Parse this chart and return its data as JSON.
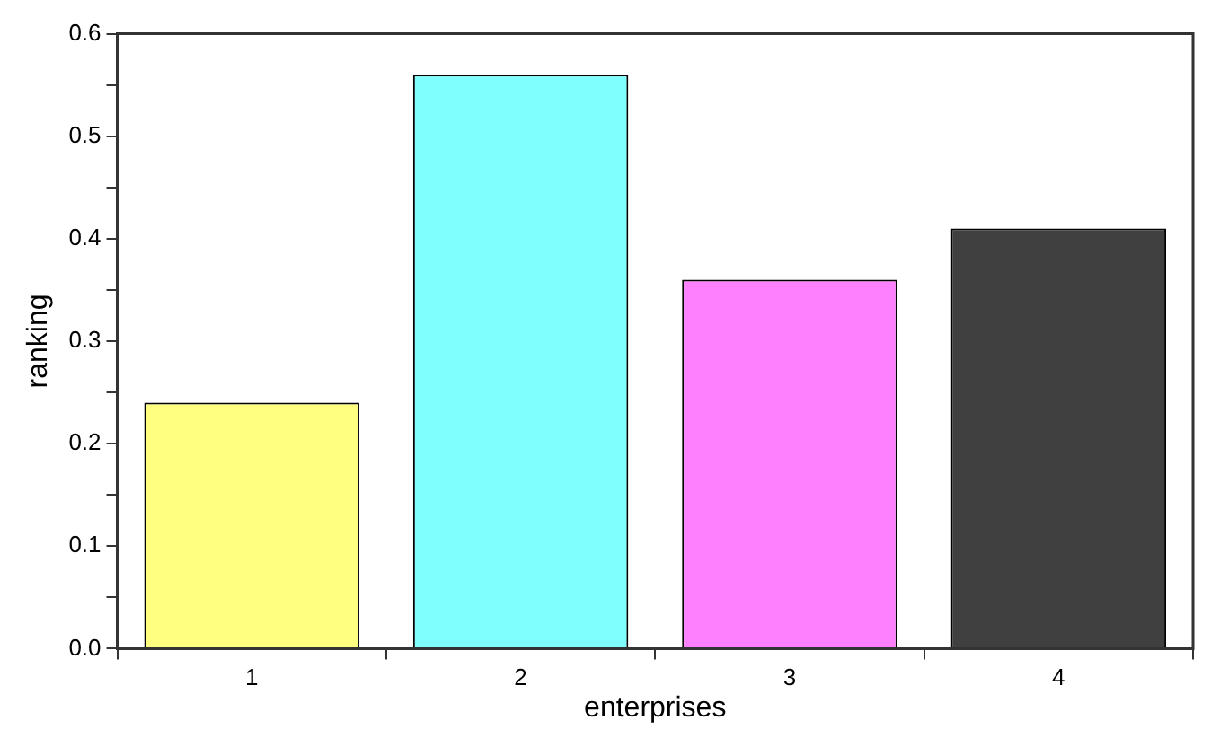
{
  "chart_data": {
    "type": "bar",
    "xlabel": "enterprises",
    "ylabel": "ranking",
    "categories": [
      "1",
      "2",
      "3",
      "4"
    ],
    "values": [
      0.24,
      0.56,
      0.36,
      0.41
    ],
    "colors": [
      "#ffff80",
      "#80ffff",
      "#ff80ff",
      "#404040"
    ],
    "ylim": [
      0,
      0.6
    ],
    "yticks": [
      {
        "value": 0,
        "label": "0.0"
      },
      {
        "value": 0.05,
        "label": null
      },
      {
        "value": 0.1,
        "label": "0.1"
      },
      {
        "value": 0.15,
        "label": null
      },
      {
        "value": 0.2,
        "label": "0.2"
      },
      {
        "value": 0.25,
        "label": null
      },
      {
        "value": 0.3,
        "label": "0.3"
      },
      {
        "value": 0.35,
        "label": null
      },
      {
        "value": 0.4,
        "label": "0.4"
      },
      {
        "value": 0.45,
        "label": null
      },
      {
        "value": 0.5,
        "label": "0.5"
      },
      {
        "value": 0.55,
        "label": null
      },
      {
        "value": 0.6,
        "label": "0.6"
      }
    ],
    "grid": false,
    "legend": false
  }
}
